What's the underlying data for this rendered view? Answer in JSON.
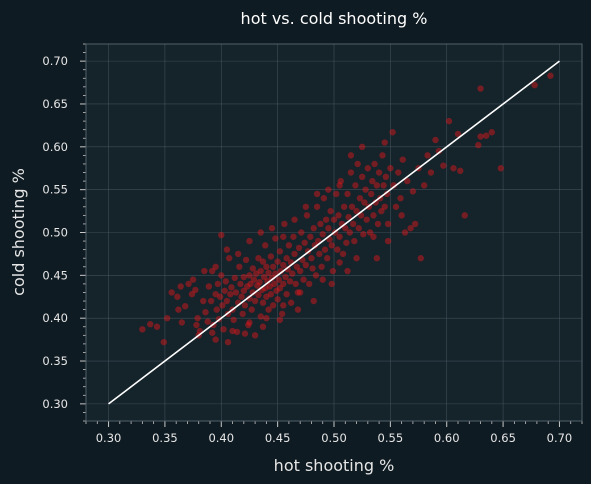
{
  "chart_data": {
    "type": "scatter",
    "title": "hot vs. cold shooting %",
    "xlabel": "hot shooting %",
    "ylabel": "cold shooting %",
    "xlim": [
      0.28,
      0.72
    ],
    "ylim": [
      0.28,
      0.72
    ],
    "x_ticks": [
      "0.30",
      "0.35",
      "0.40",
      "0.45",
      "0.50",
      "0.55",
      "0.60",
      "0.65",
      "0.70"
    ],
    "y_ticks": [
      "0.30",
      "0.35",
      "0.40",
      "0.45",
      "0.50",
      "0.55",
      "0.60",
      "0.65",
      "0.70"
    ],
    "grid": true,
    "colors": {
      "background": "#0f1b22",
      "plot_area": "#15232b",
      "points": "#e8161b",
      "reference_line": "#ffffff",
      "grid": "#51606a"
    },
    "reference_line": {
      "x": [
        0.3,
        0.7
      ],
      "y": [
        0.3,
        0.7
      ]
    },
    "series": [
      {
        "points": [
          [
            0.33,
            0.387
          ],
          [
            0.337,
            0.393
          ],
          [
            0.343,
            0.39
          ],
          [
            0.349,
            0.372
          ],
          [
            0.352,
            0.4
          ],
          [
            0.356,
            0.43
          ],
          [
            0.361,
            0.425
          ],
          [
            0.364,
            0.437
          ],
          [
            0.368,
            0.414
          ],
          [
            0.371,
            0.44
          ],
          [
            0.374,
            0.428
          ],
          [
            0.377,
            0.433
          ],
          [
            0.379,
            0.4
          ],
          [
            0.381,
            0.385
          ],
          [
            0.384,
            0.42
          ],
          [
            0.386,
            0.407
          ],
          [
            0.388,
            0.396
          ],
          [
            0.389,
            0.437
          ],
          [
            0.391,
            0.42
          ],
          [
            0.392,
            0.455
          ],
          [
            0.393,
            0.392
          ],
          [
            0.395,
            0.428
          ],
          [
            0.396,
            0.41
          ],
          [
            0.397,
            0.44
          ],
          [
            0.398,
            0.399
          ],
          [
            0.399,
            0.425
          ],
          [
            0.4,
            0.497
          ],
          [
            0.4,
            0.45
          ],
          [
            0.401,
            0.415
          ],
          [
            0.402,
            0.387
          ],
          [
            0.403,
            0.432
          ],
          [
            0.404,
            0.443
          ],
          [
            0.405,
            0.42
          ],
          [
            0.406,
            0.405
          ],
          [
            0.407,
            0.47
          ],
          [
            0.408,
            0.428
          ],
          [
            0.409,
            0.436
          ],
          [
            0.41,
            0.41
          ],
          [
            0.411,
            0.398
          ],
          [
            0.412,
            0.447
          ],
          [
            0.413,
            0.43
          ],
          [
            0.414,
            0.384
          ],
          [
            0.415,
            0.418
          ],
          [
            0.416,
            0.46
          ],
          [
            0.417,
            0.44
          ],
          [
            0.418,
            0.425
          ],
          [
            0.419,
            0.405
          ],
          [
            0.42,
            0.448
          ],
          [
            0.42,
            0.432
          ],
          [
            0.421,
            0.415
          ],
          [
            0.422,
            0.468
          ],
          [
            0.423,
            0.437
          ],
          [
            0.424,
            0.392
          ],
          [
            0.425,
            0.45
          ],
          [
            0.425,
            0.423
          ],
          [
            0.426,
            0.44
          ],
          [
            0.427,
            0.41
          ],
          [
            0.428,
            0.458
          ],
          [
            0.428,
            0.43
          ],
          [
            0.429,
            0.445
          ],
          [
            0.43,
            0.38
          ],
          [
            0.43,
            0.42
          ],
          [
            0.431,
            0.452
          ],
          [
            0.432,
            0.438
          ],
          [
            0.433,
            0.47
          ],
          [
            0.433,
            0.427
          ],
          [
            0.434,
            0.442
          ],
          [
            0.435,
            0.402
          ],
          [
            0.435,
            0.455
          ],
          [
            0.436,
            0.433
          ],
          [
            0.437,
            0.466
          ],
          [
            0.437,
            0.418
          ],
          [
            0.438,
            0.448
          ],
          [
            0.439,
            0.435
          ],
          [
            0.439,
            0.485
          ],
          [
            0.44,
            0.46
          ],
          [
            0.44,
            0.425
          ],
          [
            0.441,
            0.443
          ],
          [
            0.442,
            0.41
          ],
          [
            0.442,
            0.453
          ],
          [
            0.443,
            0.437
          ],
          [
            0.444,
            0.472
          ],
          [
            0.444,
            0.428
          ],
          [
            0.445,
            0.447
          ],
          [
            0.446,
            0.46
          ],
          [
            0.446,
            0.415
          ],
          [
            0.447,
            0.44
          ],
          [
            0.448,
            0.493
          ],
          [
            0.448,
            0.452
          ],
          [
            0.449,
            0.432
          ],
          [
            0.45,
            0.466
          ],
          [
            0.45,
            0.422
          ],
          [
            0.451,
            0.445
          ],
          [
            0.452,
            0.478
          ],
          [
            0.452,
            0.435
          ],
          [
            0.453,
            0.455
          ],
          [
            0.454,
            0.405
          ],
          [
            0.455,
            0.462
          ],
          [
            0.455,
            0.44
          ],
          [
            0.456,
            0.51
          ],
          [
            0.457,
            0.448
          ],
          [
            0.458,
            0.47
          ],
          [
            0.458,
            0.428
          ],
          [
            0.459,
            0.457
          ],
          [
            0.46,
            0.485
          ],
          [
            0.461,
            0.443
          ],
          [
            0.462,
            0.465
          ],
          [
            0.462,
            0.418
          ],
          [
            0.463,
            0.452
          ],
          [
            0.464,
            0.495
          ],
          [
            0.465,
            0.475
          ],
          [
            0.466,
            0.44
          ],
          [
            0.467,
            0.46
          ],
          [
            0.468,
            0.43
          ],
          [
            0.469,
            0.482
          ],
          [
            0.47,
            0.455
          ],
          [
            0.471,
            0.5
          ],
          [
            0.472,
            0.468
          ],
          [
            0.473,
            0.445
          ],
          [
            0.474,
            0.488
          ],
          [
            0.475,
            0.462
          ],
          [
            0.476,
            0.52
          ],
          [
            0.477,
            0.478
          ],
          [
            0.478,
            0.44
          ],
          [
            0.479,
            0.495
          ],
          [
            0.48,
            0.47
          ],
          [
            0.481,
            0.458
          ],
          [
            0.482,
            0.505
          ],
          [
            0.483,
            0.485
          ],
          [
            0.484,
            0.45
          ],
          [
            0.485,
            0.53
          ],
          [
            0.486,
            0.49
          ],
          [
            0.487,
            0.475
          ],
          [
            0.488,
            0.51
          ],
          [
            0.489,
            0.46
          ],
          [
            0.49,
            0.498
          ],
          [
            0.491,
            0.54
          ],
          [
            0.492,
            0.48
          ],
          [
            0.493,
            0.515
          ],
          [
            0.494,
            0.47
          ],
          [
            0.495,
            0.505
          ],
          [
            0.496,
            0.492
          ],
          [
            0.497,
            0.525
          ],
          [
            0.498,
            0.485
          ],
          [
            0.499,
            0.455
          ],
          [
            0.5,
            0.515
          ],
          [
            0.501,
            0.5
          ],
          [
            0.502,
            0.545
          ],
          [
            0.503,
            0.48
          ],
          [
            0.504,
            0.52
          ],
          [
            0.505,
            0.495
          ],
          [
            0.506,
            0.56
          ],
          [
            0.507,
            0.51
          ],
          [
            0.508,
            0.475
          ],
          [
            0.509,
            0.53
          ],
          [
            0.51,
            0.505
          ],
          [
            0.511,
            0.488
          ],
          [
            0.512,
            0.545
          ],
          [
            0.513,
            0.518
          ],
          [
            0.514,
            0.5
          ],
          [
            0.515,
            0.57
          ],
          [
            0.516,
            0.53
          ],
          [
            0.517,
            0.51
          ],
          [
            0.518,
            0.49
          ],
          [
            0.519,
            0.555
          ],
          [
            0.52,
            0.525
          ],
          [
            0.521,
            0.58
          ],
          [
            0.522,
            0.505
          ],
          [
            0.523,
            0.54
          ],
          [
            0.524,
            0.52
          ],
          [
            0.525,
            0.565
          ],
          [
            0.526,
            0.498
          ],
          [
            0.527,
            0.535
          ],
          [
            0.528,
            0.55
          ],
          [
            0.529,
            0.515
          ],
          [
            0.53,
            0.575
          ],
          [
            0.531,
            0.53
          ],
          [
            0.532,
            0.5
          ],
          [
            0.533,
            0.545
          ],
          [
            0.534,
            0.56
          ],
          [
            0.535,
            0.52
          ],
          [
            0.536,
            0.58
          ],
          [
            0.537,
            0.535
          ],
          [
            0.538,
            0.555
          ],
          [
            0.539,
            0.51
          ],
          [
            0.54,
            0.57
          ],
          [
            0.541,
            0.54
          ],
          [
            0.542,
            0.525
          ],
          [
            0.543,
            0.59
          ],
          [
            0.544,
            0.555
          ],
          [
            0.545,
            0.53
          ],
          [
            0.546,
            0.565
          ],
          [
            0.547,
            0.545
          ],
          [
            0.548,
            0.51
          ],
          [
            0.55,
            0.575
          ],
          [
            0.552,
            0.617
          ],
          [
            0.553,
            0.555
          ],
          [
            0.555,
            0.53
          ],
          [
            0.557,
            0.57
          ],
          [
            0.559,
            0.54
          ],
          [
            0.561,
            0.585
          ],
          [
            0.563,
            0.5
          ],
          [
            0.565,
            0.56
          ],
          [
            0.568,
            0.505
          ],
          [
            0.57,
            0.548
          ],
          [
            0.572,
            0.51
          ],
          [
            0.575,
            0.575
          ],
          [
            0.577,
            0.47
          ],
          [
            0.58,
            0.555
          ],
          [
            0.583,
            0.59
          ],
          [
            0.586,
            0.57
          ],
          [
            0.59,
            0.608
          ],
          [
            0.593,
            0.595
          ],
          [
            0.597,
            0.578
          ],
          [
            0.602,
            0.63
          ],
          [
            0.606,
            0.575
          ],
          [
            0.61,
            0.615
          ],
          [
            0.612,
            0.572
          ],
          [
            0.616,
            0.52
          ],
          [
            0.628,
            0.602
          ],
          [
            0.63,
            0.612
          ],
          [
            0.63,
            0.668
          ],
          [
            0.635,
            0.613
          ],
          [
            0.64,
            0.617
          ],
          [
            0.648,
            0.575
          ],
          [
            0.678,
            0.672
          ],
          [
            0.692,
            0.683
          ],
          [
            0.548,
            0.49
          ],
          [
            0.56,
            0.52
          ],
          [
            0.52,
            0.47
          ],
          [
            0.535,
            0.495
          ],
          [
            0.505,
            0.465
          ],
          [
            0.49,
            0.445
          ],
          [
            0.47,
            0.43
          ],
          [
            0.455,
            0.415
          ],
          [
            0.44,
            0.4
          ],
          [
            0.425,
            0.395
          ],
          [
            0.41,
            0.385
          ],
          [
            0.395,
            0.375
          ],
          [
            0.38,
            0.38
          ],
          [
            0.365,
            0.395
          ],
          [
            0.375,
            0.445
          ],
          [
            0.385,
            0.455
          ],
          [
            0.395,
            0.46
          ],
          [
            0.405,
            0.48
          ],
          [
            0.415,
            0.475
          ],
          [
            0.425,
            0.49
          ],
          [
            0.435,
            0.5
          ],
          [
            0.445,
            0.505
          ],
          [
            0.455,
            0.495
          ],
          [
            0.465,
            0.515
          ],
          [
            0.475,
            0.53
          ],
          [
            0.485,
            0.545
          ],
          [
            0.495,
            0.55
          ],
          [
            0.505,
            0.555
          ],
          [
            0.515,
            0.59
          ],
          [
            0.525,
            0.6
          ],
          [
            0.545,
            0.605
          ],
          [
            0.538,
            0.47
          ],
          [
            0.512,
            0.455
          ],
          [
            0.498,
            0.44
          ],
          [
            0.482,
            0.42
          ],
          [
            0.468,
            0.41
          ],
          [
            0.452,
            0.398
          ],
          [
            0.437,
            0.39
          ],
          [
            0.421,
            0.382
          ],
          [
            0.406,
            0.372
          ],
          [
            0.392,
            0.383
          ],
          [
            0.378,
            0.392
          ],
          [
            0.362,
            0.41
          ]
        ]
      }
    ]
  }
}
